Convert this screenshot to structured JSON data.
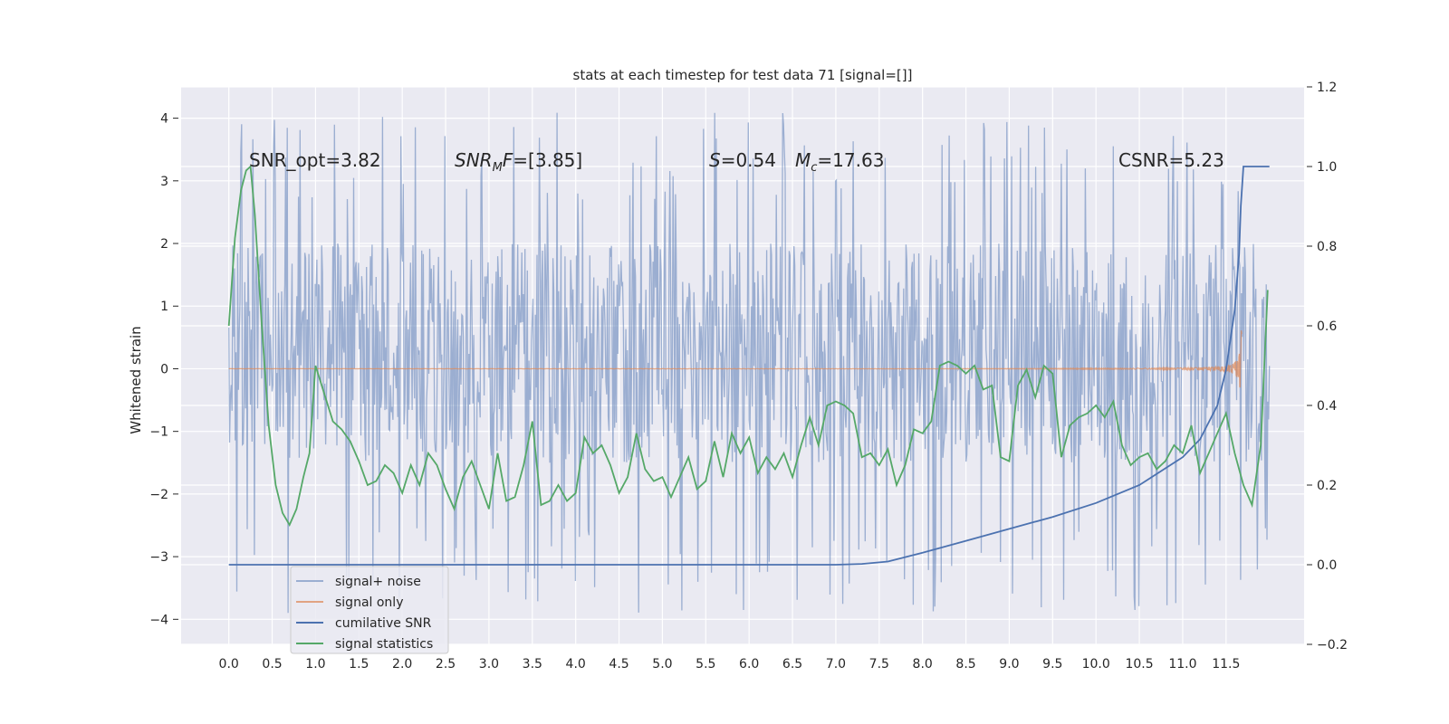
{
  "chart_data": {
    "type": "line",
    "title": "stats at each timestep for test data 71 [signal=[]]",
    "ylabel": "Whitened strain",
    "xlabel": "",
    "xlim": [
      -0.55,
      12.4
    ],
    "ylim": [
      -4.4,
      4.5
    ],
    "y2lim": [
      -0.2,
      1.2
    ],
    "x_ticks": [
      0.0,
      0.5,
      1.0,
      1.5,
      2.0,
      2.5,
      3.0,
      3.5,
      4.0,
      4.5,
      5.0,
      5.5,
      6.0,
      6.5,
      7.0,
      7.5,
      8.0,
      8.5,
      9.0,
      9.5,
      10.0,
      10.5,
      11.0,
      11.5
    ],
    "x_tick_labels": [
      "0.0",
      "0.5",
      "1.0",
      "1.5",
      "2.0",
      "2.5",
      "3.0",
      "3.5",
      "4.0",
      "4.5",
      "5.0",
      "5.5",
      "6.0",
      "6.5",
      "7.0",
      "7.5",
      "8.0",
      "8.5",
      "9.0",
      "9.5",
      "10.0",
      "10.5",
      "11.0",
      "11.5"
    ],
    "y_ticks": [
      4,
      3,
      2,
      1,
      0,
      -1,
      -2,
      -3,
      -4
    ],
    "y_tick_labels": [
      "4",
      "3",
      "2",
      "1",
      "0",
      "−1",
      "−2",
      "−3",
      "−4"
    ],
    "y2_ticks": [
      1.2,
      1.0,
      0.8,
      0.6,
      0.4,
      0.2,
      0.0,
      -0.2
    ],
    "y2_tick_labels": [
      "1.2",
      "1.0",
      "0.8",
      "0.6",
      "0.4",
      "0.2",
      "0.0",
      "−0.2"
    ],
    "grid": true,
    "legend_position": "lower-left",
    "annotations": {
      "snr_opt": "SNR_opt=3.82",
      "snr_mf_main": "SNR",
      "snr_mf_sub": "M",
      "snr_mf_rest": "F",
      "snr_mf_value": "=[3.85]",
      "s_symbol": "S",
      "s_value": "=0.54",
      "mc_symbol": "M",
      "mc_sub": "c",
      "mc_value": "=17.63",
      "csnr": "CSNR=5.23"
    },
    "series": [
      {
        "name": "signal+ noise",
        "color": "#4c72b0",
        "axis": "left",
        "kind": "noise",
        "x_range": [
          0.0,
          12.0
        ],
        "center": 0.2,
        "band": [
          -1.5,
          2.0
        ],
        "extreme_range": [
          -3.9,
          4.1
        ]
      },
      {
        "name": "signal only",
        "color": "#dd8452",
        "axis": "left",
        "kind": "chirp",
        "x_range": [
          0.0,
          11.68
        ],
        "peak_amplitude": 0.75
      },
      {
        "name": "cumilative SNR",
        "color": "#4c72b0",
        "axis": "right",
        "x": [
          0.0,
          1.0,
          2.0,
          3.0,
          4.0,
          5.0,
          6.0,
          7.0,
          7.3,
          7.6,
          8.0,
          8.5,
          9.0,
          9.5,
          10.0,
          10.5,
          11.0,
          11.2,
          11.4,
          11.5,
          11.6,
          11.65,
          11.67,
          11.7,
          11.8,
          12.0
        ],
        "values": [
          0.0,
          0.0,
          0.0,
          0.0,
          0.0,
          0.0,
          0.0,
          0.0,
          0.002,
          0.008,
          0.03,
          0.06,
          0.09,
          0.12,
          0.155,
          0.2,
          0.27,
          0.315,
          0.4,
          0.49,
          0.64,
          0.78,
          0.9,
          1.0,
          1.0,
          1.0
        ]
      },
      {
        "name": "signal statistics",
        "color": "#55a868",
        "axis": "right",
        "x": [
          0.0,
          0.07,
          0.14,
          0.2,
          0.25,
          0.3,
          0.38,
          0.46,
          0.54,
          0.62,
          0.7,
          0.78,
          0.86,
          0.93,
          1.0,
          1.1,
          1.2,
          1.3,
          1.4,
          1.5,
          1.6,
          1.7,
          1.8,
          1.9,
          2.0,
          2.1,
          2.2,
          2.3,
          2.4,
          2.5,
          2.6,
          2.7,
          2.8,
          2.9,
          3.0,
          3.1,
          3.2,
          3.3,
          3.4,
          3.5,
          3.6,
          3.7,
          3.8,
          3.9,
          4.0,
          4.1,
          4.2,
          4.3,
          4.4,
          4.5,
          4.6,
          4.7,
          4.8,
          4.9,
          5.0,
          5.1,
          5.2,
          5.3,
          5.4,
          5.5,
          5.6,
          5.7,
          5.8,
          5.9,
          6.0,
          6.1,
          6.2,
          6.3,
          6.4,
          6.5,
          6.6,
          6.7,
          6.8,
          6.9,
          7.0,
          7.1,
          7.2,
          7.3,
          7.4,
          7.5,
          7.6,
          7.7,
          7.8,
          7.9,
          8.0,
          8.1,
          8.2,
          8.3,
          8.4,
          8.5,
          8.6,
          8.7,
          8.8,
          8.9,
          9.0,
          9.1,
          9.2,
          9.3,
          9.4,
          9.5,
          9.6,
          9.7,
          9.8,
          9.9,
          10.0,
          10.1,
          10.2,
          10.3,
          10.4,
          10.5,
          10.6,
          10.7,
          10.8,
          10.9,
          11.0,
          11.1,
          11.2,
          11.3,
          11.4,
          11.5,
          11.6,
          11.7,
          11.8,
          11.9,
          11.98
        ],
        "values": [
          0.6,
          0.82,
          0.94,
          0.99,
          1.0,
          0.88,
          0.6,
          0.35,
          0.2,
          0.13,
          0.1,
          0.14,
          0.22,
          0.28,
          0.5,
          0.43,
          0.36,
          0.34,
          0.31,
          0.26,
          0.2,
          0.21,
          0.25,
          0.23,
          0.18,
          0.25,
          0.2,
          0.28,
          0.25,
          0.19,
          0.14,
          0.22,
          0.26,
          0.2,
          0.14,
          0.28,
          0.16,
          0.17,
          0.25,
          0.36,
          0.15,
          0.16,
          0.2,
          0.16,
          0.18,
          0.32,
          0.28,
          0.3,
          0.25,
          0.18,
          0.22,
          0.33,
          0.24,
          0.21,
          0.22,
          0.17,
          0.22,
          0.27,
          0.19,
          0.21,
          0.31,
          0.22,
          0.33,
          0.28,
          0.32,
          0.23,
          0.27,
          0.24,
          0.28,
          0.22,
          0.3,
          0.37,
          0.3,
          0.4,
          0.41,
          0.4,
          0.38,
          0.27,
          0.28,
          0.25,
          0.29,
          0.2,
          0.25,
          0.34,
          0.33,
          0.36,
          0.5,
          0.51,
          0.5,
          0.48,
          0.5,
          0.44,
          0.45,
          0.27,
          0.26,
          0.45,
          0.49,
          0.42,
          0.5,
          0.48,
          0.27,
          0.35,
          0.37,
          0.38,
          0.4,
          0.37,
          0.41,
          0.3,
          0.25,
          0.27,
          0.28,
          0.24,
          0.26,
          0.3,
          0.28,
          0.35,
          0.23,
          0.28,
          0.33,
          0.38,
          0.28,
          0.2,
          0.15,
          0.3,
          0.69
        ]
      }
    ]
  }
}
